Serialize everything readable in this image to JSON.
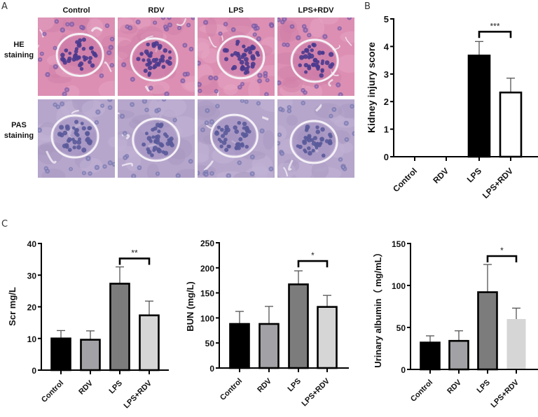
{
  "panels": {
    "A": {
      "letter": "A",
      "columns": [
        "Control",
        "RDV",
        "LPS",
        "LPS+RDV"
      ],
      "rows": [
        {
          "label_line1": "HE",
          "label_line2": "staining",
          "stain": "HE"
        },
        {
          "label_line1": "PAS",
          "label_line2": "staining",
          "stain": "PAS"
        }
      ],
      "colors": {
        "HE_bg": "#dc8fb3",
        "HE_nuclei": "#4a3a8e",
        "PAS_bg": "#b6a6cc",
        "PAS_nuclei": "#5a5a9a"
      }
    },
    "B": {
      "letter": "B"
    },
    "C": {
      "letter": "C"
    }
  },
  "chart_data": [
    {
      "id": "B",
      "type": "bar",
      "title": "",
      "xlabel": "",
      "ylabel": "Kidney injury score",
      "categories": [
        "Control",
        "RDV",
        "LPS",
        "LPS+RDV"
      ],
      "values": [
        0,
        0,
        3.67,
        2.33
      ],
      "error_upper": [
        0,
        0,
        4.18,
        2.85
      ],
      "ylim": [
        0,
        5
      ],
      "yticks": [
        0,
        1,
        2,
        3,
        4,
        5
      ],
      "bar_fill": [
        "#000000",
        "#000000",
        "#000000",
        "#ffffff"
      ],
      "significance": {
        "between": [
          "LPS",
          "LPS+RDV"
        ],
        "label": "***"
      },
      "grid": false,
      "legend": null
    },
    {
      "id": "C1",
      "type": "bar",
      "title": "",
      "xlabel": "",
      "ylabel": "Scr mg/L",
      "categories": [
        "Control",
        "RDV",
        "LPS",
        "LPS+RDV"
      ],
      "values": [
        10.0,
        9.6,
        27.3,
        17.3
      ],
      "error_upper": [
        12.5,
        12.4,
        32.6,
        21.8
      ],
      "ylim": [
        0,
        40
      ],
      "yticks": [
        0,
        10,
        20,
        30,
        40
      ],
      "bar_fill": [
        "#000000",
        "#a2a2a6",
        "#7c7c7c",
        "#d6d6d6"
      ],
      "significance": {
        "between": [
          "LPS",
          "LPS+RDV"
        ],
        "label": "**"
      },
      "grid": false,
      "legend": null
    },
    {
      "id": "C2",
      "type": "bar",
      "title": "",
      "xlabel": "",
      "ylabel": "BUN (mg/L)",
      "categories": [
        "Control",
        "RDV",
        "LPS",
        "LPS+RDV"
      ],
      "values": [
        88,
        88,
        167,
        122
      ],
      "error_upper": [
        113,
        123,
        194,
        145
      ],
      "ylim": [
        0,
        250
      ],
      "yticks": [
        0,
        50,
        100,
        150,
        200,
        250
      ],
      "bar_fill": [
        "#000000",
        "#a2a2a6",
        "#7c7c7c",
        "#d6d6d6"
      ],
      "significance": {
        "between": [
          "LPS",
          "LPS+RDV"
        ],
        "label": "*"
      },
      "grid": false,
      "legend": null
    },
    {
      "id": "C3",
      "type": "bar",
      "title": "",
      "xlabel": "",
      "ylabel": "Urinary albumin（ mg/mL）",
      "categories": [
        "Control",
        "RDV",
        "LPS",
        "LPS+RDV"
      ],
      "values": [
        32,
        34,
        92,
        60
      ],
      "error_upper": [
        40,
        46,
        125,
        73
      ],
      "ylim": [
        0,
        150
      ],
      "yticks": [
        0,
        50,
        100,
        150
      ],
      "bar_fill": [
        "#000000",
        "#a2a2a6",
        "#7c7c7c",
        "#d6d6d6"
      ],
      "bar_border_last": false,
      "significance": {
        "between": [
          "LPS",
          "LPS+RDV"
        ],
        "label": "*"
      },
      "grid": false,
      "legend": null
    }
  ]
}
